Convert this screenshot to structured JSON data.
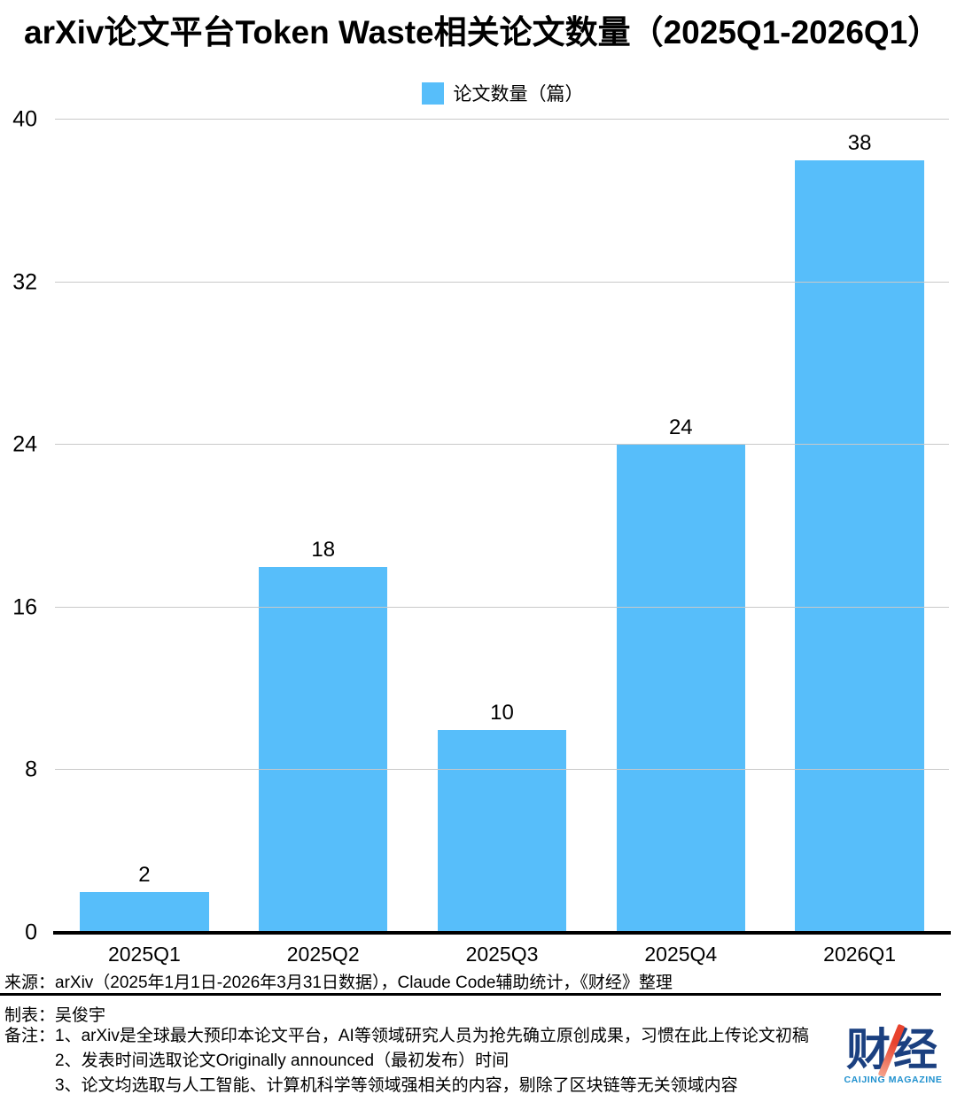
{
  "title": "arXiv论文平台Token Waste相关论文数量（2025Q1-2026Q1）",
  "legend": {
    "label": "论文数量（篇）",
    "color": "#57BEFA"
  },
  "chart_data": {
    "type": "bar",
    "title": "arXiv论文平台Token Waste相关论文数量（2025Q1-2026Q1）",
    "categories": [
      "2025Q1",
      "2025Q2",
      "2025Q3",
      "2025Q4",
      "2026Q1"
    ],
    "values": [
      2,
      18,
      10,
      24,
      38
    ],
    "xlabel": "",
    "ylabel": "",
    "ylim": [
      0,
      40
    ],
    "yticks": [
      0,
      8,
      16,
      24,
      32,
      40
    ],
    "grid": true,
    "bar_color": "#57BEFA",
    "legend_entries": [
      "论文数量（篇）"
    ],
    "legend_position": "top"
  },
  "footer": {
    "source": "来源：arXiv（2025年1月1日-2026年3月31日数据），Claude Code辅助统计，《财经》整理",
    "author": "制表：吴俊宇",
    "notes_label": "备注：",
    "notes": [
      "1、arXiv是全球最大预印本论文平台，AI等领域研究人员为抢先确立原创成果，习惯在此上传论文初稿",
      "2、发表时间选取论文Originally announced（最初发布）时间",
      "3、论文均选取与人工智能、计算机科学等领域强相关的内容，剔除了区块链等无关领域内容"
    ],
    "logo": {
      "text": "财经",
      "subtext": "CAIJING MAGAZINE",
      "color": "#1B4080",
      "accent": "#E8432E",
      "subtext_color": "#1E90CE"
    }
  }
}
